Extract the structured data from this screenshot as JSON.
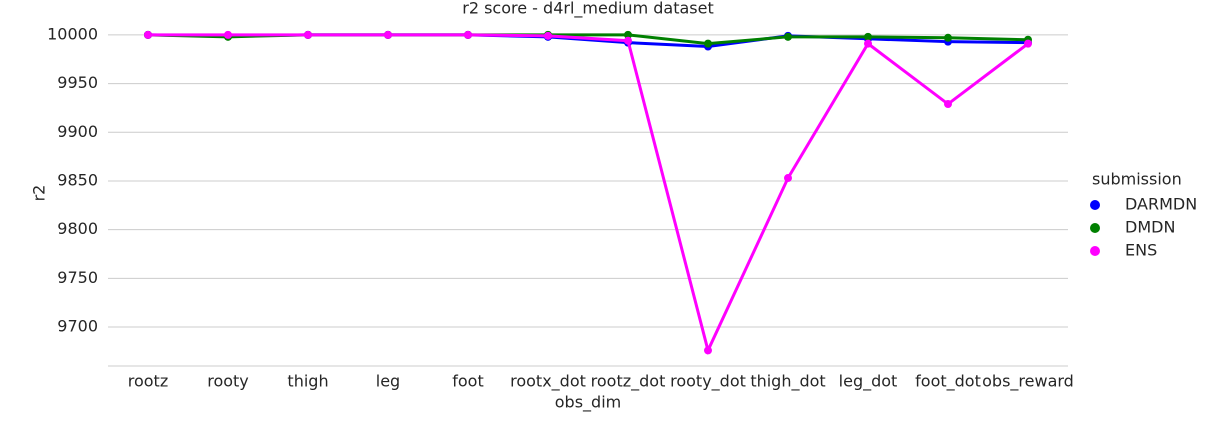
{
  "chart_data": {
    "type": "line",
    "title": "r2 score - d4rl_medium dataset",
    "x_label": "obs_dim",
    "y_label": "r2",
    "categories": [
      "rootz",
      "rooty",
      "thigh",
      "leg",
      "foot",
      "rootx_dot",
      "rootz_dot",
      "rooty_dot",
      "thigh_dot",
      "leg_dot",
      "foot_dot",
      "obs_reward"
    ],
    "series": [
      {
        "name": "DARMDN",
        "color": "#0000ff",
        "values": [
          10000,
          9999,
          10000,
          10000,
          10000,
          9998,
          9992,
          9988,
          9999,
          9996,
          9993,
          9992
        ]
      },
      {
        "name": "DMDN",
        "color": "#008000",
        "values": [
          10000,
          9998,
          10000,
          10000,
          10000,
          10000,
          10000,
          9991,
          9998,
          9998,
          9997,
          9995
        ]
      },
      {
        "name": "ENS",
        "color": "#ff00ff",
        "values": [
          10000,
          10000,
          10000,
          10000,
          10000,
          9999,
          9994,
          9676,
          9853,
          9991,
          9929,
          9991
        ]
      }
    ],
    "legend_title": "submission",
    "ylim": [
      9660,
      10005
    ],
    "yticks": [
      9700,
      9750,
      9800,
      9850,
      9900,
      9950,
      10000
    ],
    "grid": true
  }
}
